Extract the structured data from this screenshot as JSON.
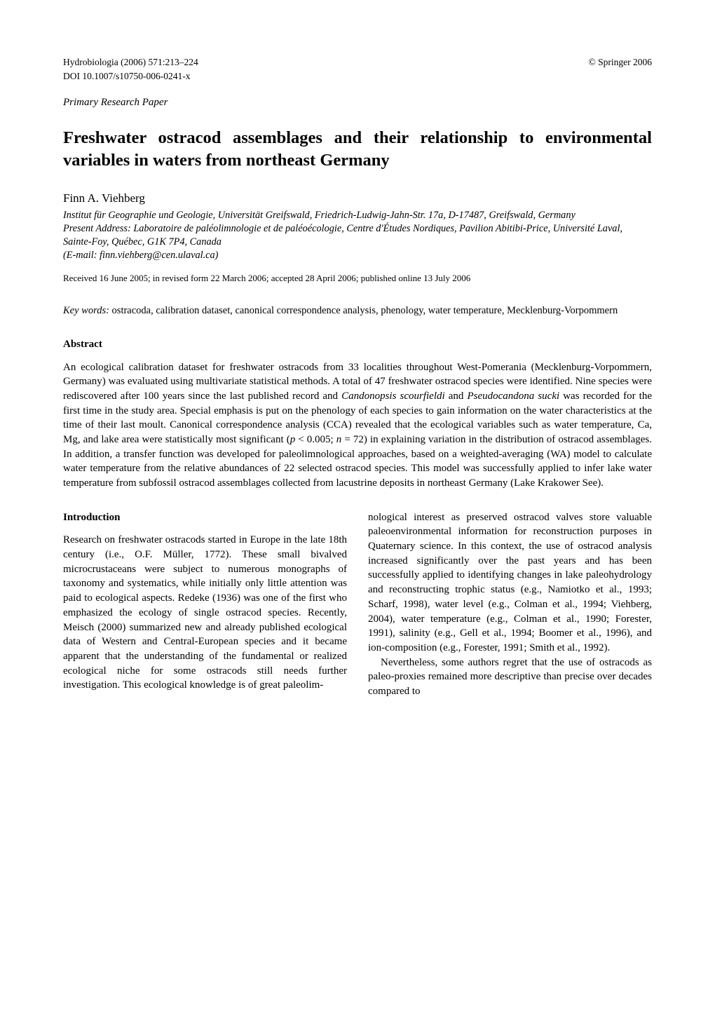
{
  "header": {
    "journal_ref": "Hydrobiologia (2006) 571:213–224",
    "doi": "DOI 10.1007/s10750-006-0241-x",
    "copyright": "© Springer 2006",
    "paper_type": "Primary Research Paper"
  },
  "title": "Freshwater ostracod assemblages and their relationship to environmental variables in waters from northeast Germany",
  "author": "Finn A. Viehberg",
  "affiliation1": "Institut für Geographie und Geologie, Universität Greifswald, Friedrich-Ludwig-Jahn-Str. 17a, D-17487, Greifswald, Germany",
  "affiliation2": "Present Address: Laboratoire de paléolimnologie et de paléoécologie, Centre d'Études Nordiques, Pavilion Abitibi-Price, Université Laval, Sainte-Foy, Québec, G1K 7P4, Canada",
  "email": "(E-mail: finn.viehberg@cen.ulaval.ca)",
  "received": "Received 16 June 2005; in revised form 22 March 2006; accepted 28 April 2006; published online 13 July 2006",
  "keywords_label": "Key words:",
  "keywords_text": " ostracoda, calibration dataset, canonical correspondence analysis, phenology, water temperature, Mecklenburg-Vorpommern",
  "abstract_heading": "Abstract",
  "abstract_text": "An ecological calibration dataset for freshwater ostracods from 33 localities throughout West-Pomerania (Mecklenburg-Vorpommern, Germany) was evaluated using multivariate statistical methods. A total of 47 freshwater ostracod species were identified. Nine species were rediscovered after 100 years since the last published record and Candonopsis scourfieldi and Pseudocandona sucki was recorded for the first time in the study area. Special emphasis is put on the phenology of each species to gain information on the water characteristics at the time of their last moult. Canonical correspondence analysis (CCA) revealed that the ecological variables such as water temperature, Ca, Mg, and lake area were statistically most significant (p < 0.005; n = 72) in explaining variation in the distribution of ostracod assemblages. In addition, a transfer function was developed for paleolimnological approaches, based on a weighted-averaging (WA) model to calculate water temperature from the relative abundances of 22 selected ostracod species. This model was successfully applied to infer lake water temperature from subfossil ostracod assemblages collected from lacustrine deposits in northeast Germany (Lake Krakower See).",
  "introduction_heading": "Introduction",
  "intro_col1": "Research on freshwater ostracods started in Europe in the late 18th century (i.e., O.F. Müller, 1772). These small bivalved microcrustaceans were subject to numerous monographs of taxonomy and systematics, while initially only little attention was paid to ecological aspects. Redeke (1936) was one of the first who emphasized the ecology of single ostracod species. Recently, Meisch (2000) summarized new and already published ecological data of Western and Central-European species and it became apparent that the understanding of the fundamental or realized ecological niche for some ostracods still needs further investigation. This ecological knowledge is of great paleolim-",
  "intro_col2_p1": "nological interest as preserved ostracod valves store valuable paleoenvironmental information for reconstruction purposes in Quaternary science. In this context, the use of ostracod analysis increased significantly over the past years and has been successfully applied to identifying changes in lake paleohydrology and reconstructing trophic status (e.g., Namiotko et al., 1993; Scharf, 1998), water level (e.g., Colman et al., 1994; Viehberg, 2004), water temperature (e.g., Colman et al., 1990; Forester, 1991), salinity (e.g., Gell et al., 1994; Boomer et al., 1996), and ion-composition (e.g., Forester, 1991; Smith et al., 1992).",
  "intro_col2_p2": "Nevertheless, some authors regret that the use of ostracods as paleo-proxies remained more descriptive than precise over decades compared to"
}
